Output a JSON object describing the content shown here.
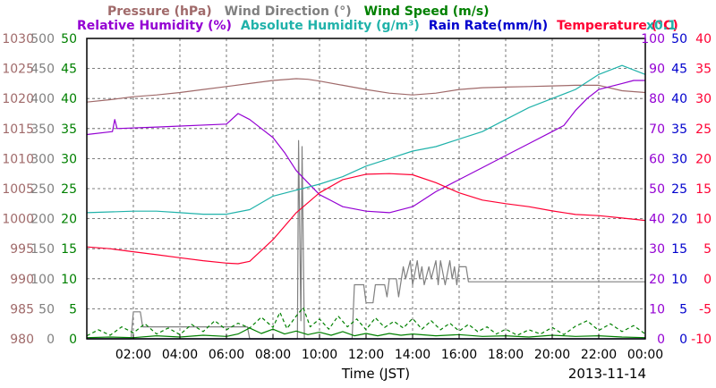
{
  "chart_data": {
    "type": "line",
    "date_label": "2013-11-14",
    "xlabel": "Time (JST)",
    "x_ticks": [
      "02:00",
      "04:00",
      "06:00",
      "08:00",
      "10:00",
      "12:00",
      "14:00",
      "16:00",
      "18:00",
      "20:00",
      "22:00",
      "00:00"
    ],
    "x_range": [
      0,
      24
    ],
    "grid": true,
    "legend": {
      "row1": [
        {
          "key": "pressure",
          "text": "Pressure (hPa)",
          "color": "#a06a6a"
        },
        {
          "key": "wdir",
          "text": "Wind Direction (°)",
          "color": "#808080"
        },
        {
          "key": "wspd",
          "text": "Wind Speed (m/s)",
          "color": "#008000"
        }
      ],
      "row2": [
        {
          "key": "rh",
          "text": "Relative Humidity (%)",
          "color": "#9400d3"
        },
        {
          "key": "ah",
          "text": "Absolute Humidity (g/m³)",
          "color": "#20b2aa"
        },
        {
          "key": "rain",
          "text": "Rain Rate(mm/h)",
          "color": "#0000cd"
        },
        {
          "key": "temp",
          "text": "Temperature (°C)",
          "color": "#ff0033"
        }
      ],
      "scale_note": {
        "text": "x0.1",
        "color": "#20b2aa"
      }
    },
    "axes": {
      "pressure": {
        "color": "#a06a6a",
        "range": [
          980,
          1030
        ],
        "ticks": [
          "980",
          "985",
          "990",
          "995",
          "1000",
          "1005",
          "1010",
          "1015",
          "1020",
          "1025",
          "1030"
        ]
      },
      "wdir": {
        "color": "#808080",
        "range": [
          0,
          500
        ],
        "ticks": [
          "0",
          "50",
          "100",
          "150",
          "200",
          "250",
          "300",
          "350",
          "400",
          "450",
          "500"
        ]
      },
      "wspd": {
        "color": "#008000",
        "range": [
          0,
          50
        ],
        "ticks": [
          "0",
          "5",
          "10",
          "15",
          "20",
          "25",
          "30",
          "35",
          "40",
          "45",
          "50"
        ]
      },
      "rh": {
        "color": "#9400d3",
        "range": [
          0,
          100
        ],
        "ticks": [
          "0",
          "10",
          "20",
          "30",
          "40",
          "50",
          "60",
          "70",
          "80",
          "90",
          "100"
        ]
      },
      "rain": {
        "color": "#0000cd",
        "range": [
          0,
          50
        ],
        "ticks": [
          "0",
          "5",
          "10",
          "15",
          "20",
          "25",
          "30",
          "35",
          "40",
          "45",
          "50"
        ]
      },
      "temp": {
        "color": "#ff0033",
        "range": [
          -10,
          40
        ],
        "ticks": [
          "-10",
          "-5",
          "0",
          "5",
          "10",
          "15",
          "20",
          "25",
          "30",
          "35",
          "40"
        ]
      }
    },
    "series": [
      {
        "name": "Pressure",
        "color": "#a06a6a",
        "axis": "pressure",
        "points": [
          [
            0,
            1019.4
          ],
          [
            1,
            1019.8
          ],
          [
            2,
            1020.3
          ],
          [
            3,
            1020.6
          ],
          [
            4,
            1021.0
          ],
          [
            5,
            1021.5
          ],
          [
            6,
            1022.0
          ],
          [
            7,
            1022.5
          ],
          [
            8,
            1023.0
          ],
          [
            9,
            1023.3
          ],
          [
            9.5,
            1023.2
          ],
          [
            10,
            1022.9
          ],
          [
            11,
            1022.2
          ],
          [
            12,
            1021.5
          ],
          [
            13,
            1020.9
          ],
          [
            14,
            1020.6
          ],
          [
            15,
            1020.9
          ],
          [
            16,
            1021.5
          ],
          [
            17,
            1021.8
          ],
          [
            18,
            1021.9
          ],
          [
            19,
            1022.0
          ],
          [
            20,
            1022.1
          ],
          [
            21,
            1022.2
          ],
          [
            22,
            1022.2
          ],
          [
            23,
            1021.3
          ],
          [
            24,
            1021.0
          ]
        ]
      },
      {
        "name": "Wind Direction",
        "color": "#808080",
        "axis": "wdir",
        "points": [
          [
            0,
            0
          ],
          [
            1.9,
            0
          ],
          [
            2.0,
            45
          ],
          [
            2.3,
            45
          ],
          [
            2.4,
            20
          ],
          [
            6.9,
            20
          ],
          [
            7.0,
            0
          ],
          [
            9.05,
            0
          ],
          [
            9.1,
            330
          ],
          [
            9.2,
            30
          ],
          [
            9.25,
            320
          ],
          [
            9.35,
            0
          ],
          [
            11.4,
            0
          ],
          [
            11.5,
            90
          ],
          [
            11.9,
            90
          ],
          [
            12.0,
            60
          ],
          [
            12.3,
            60
          ],
          [
            12.4,
            90
          ],
          [
            12.8,
            90
          ],
          [
            12.9,
            70
          ],
          [
            13.0,
            100
          ],
          [
            13.3,
            100
          ],
          [
            13.4,
            70
          ],
          [
            13.6,
            120
          ],
          [
            13.7,
            100
          ],
          [
            13.9,
            130
          ],
          [
            14.0,
            90
          ],
          [
            14.2,
            130
          ],
          [
            14.3,
            100
          ],
          [
            14.4,
            120
          ],
          [
            14.5,
            90
          ],
          [
            14.7,
            120
          ],
          [
            14.8,
            100
          ],
          [
            15.0,
            130
          ],
          [
            15.1,
            90
          ],
          [
            15.2,
            130
          ],
          [
            15.4,
            90
          ],
          [
            15.5,
            110
          ],
          [
            15.6,
            130
          ],
          [
            15.7,
            100
          ],
          [
            15.8,
            120
          ],
          [
            15.9,
            90
          ],
          [
            16.0,
            120
          ],
          [
            16.3,
            120
          ],
          [
            16.4,
            95
          ],
          [
            24,
            95
          ]
        ]
      },
      {
        "name": "Relative Humidity",
        "color": "#9400d3",
        "axis": "rh",
        "points": [
          [
            0,
            68
          ],
          [
            1.1,
            69
          ],
          [
            1.2,
            73
          ],
          [
            1.3,
            70
          ],
          [
            3,
            70.5
          ],
          [
            6,
            71.5
          ],
          [
            6.5,
            75
          ],
          [
            7,
            73
          ],
          [
            7.5,
            70
          ],
          [
            8,
            67
          ],
          [
            8.5,
            62
          ],
          [
            9,
            56
          ],
          [
            9.5,
            52
          ],
          [
            10,
            48
          ],
          [
            10.5,
            46
          ],
          [
            11,
            44
          ],
          [
            12,
            42.5
          ],
          [
            13,
            42
          ],
          [
            14,
            44
          ],
          [
            15,
            49
          ],
          [
            16,
            53
          ],
          [
            17,
            57
          ],
          [
            18,
            61
          ],
          [
            19,
            65
          ],
          [
            20,
            69
          ],
          [
            20.5,
            71
          ],
          [
            21,
            76
          ],
          [
            21.5,
            80
          ],
          [
            22,
            83
          ],
          [
            23,
            85
          ],
          [
            23.5,
            86
          ],
          [
            24,
            86
          ]
        ]
      },
      {
        "name": "Absolute Humidity",
        "color": "#20b2aa",
        "axis": "ah",
        "points": [
          [
            0,
            0.84
          ],
          [
            2,
            0.85
          ],
          [
            3,
            0.85
          ],
          [
            4,
            0.84
          ],
          [
            5,
            0.83
          ],
          [
            6,
            0.83
          ],
          [
            7,
            0.86
          ],
          [
            8,
            0.95
          ],
          [
            9,
            0.99
          ],
          [
            10,
            1.03
          ],
          [
            11,
            1.08
          ],
          [
            12,
            1.15
          ],
          [
            13,
            1.2
          ],
          [
            14,
            1.25
          ],
          [
            15,
            1.28
          ],
          [
            16,
            1.33
          ],
          [
            17,
            1.38
          ],
          [
            18,
            1.46
          ],
          [
            19,
            1.54
          ],
          [
            20,
            1.6
          ],
          [
            21,
            1.66
          ],
          [
            22,
            1.76
          ],
          [
            23,
            1.82
          ],
          [
            24,
            1.76
          ]
        ]
      },
      {
        "name": "Rain Rate",
        "color": "#0000cd",
        "axis": "rain",
        "points": [
          [
            0,
            0
          ],
          [
            24,
            0
          ]
        ]
      },
      {
        "name": "Temperature",
        "color": "#ff0033",
        "axis": "temp",
        "points": [
          [
            0,
            5.3
          ],
          [
            1,
            5.0
          ],
          [
            2,
            4.5
          ],
          [
            3,
            4.0
          ],
          [
            4,
            3.5
          ],
          [
            5,
            3.0
          ],
          [
            6,
            2.6
          ],
          [
            6.5,
            2.5
          ],
          [
            7,
            2.9
          ],
          [
            8,
            6.5
          ],
          [
            9,
            11.0
          ],
          [
            10,
            14.3
          ],
          [
            11,
            16.5
          ],
          [
            12,
            17.4
          ],
          [
            13,
            17.5
          ],
          [
            14,
            17.3
          ],
          [
            15,
            16.0
          ],
          [
            16,
            14.3
          ],
          [
            17,
            13.1
          ],
          [
            18,
            12.5
          ],
          [
            19,
            12.0
          ],
          [
            20,
            11.3
          ],
          [
            21,
            10.7
          ],
          [
            22,
            10.5
          ],
          [
            23,
            10.1
          ],
          [
            24,
            9.7
          ]
        ]
      },
      {
        "name": "Wind Speed",
        "color": "#008000",
        "axis": "wspd",
        "dashed": true,
        "points": [
          [
            0,
            0.5
          ],
          [
            0.5,
            1.5
          ],
          [
            1,
            0.6
          ],
          [
            1.5,
            2
          ],
          [
            2,
            1
          ],
          [
            2.5,
            2.5
          ],
          [
            3,
            0.8
          ],
          [
            3.5,
            1.8
          ],
          [
            4,
            0.7
          ],
          [
            4.5,
            2.4
          ],
          [
            5,
            1.2
          ],
          [
            5.5,
            3
          ],
          [
            6,
            1.5
          ],
          [
            6.5,
            2.6
          ],
          [
            7,
            1.8
          ],
          [
            7.5,
            3.6
          ],
          [
            8,
            1.9
          ],
          [
            8.3,
            4.4
          ],
          [
            8.6,
            1.7
          ],
          [
            9,
            3.8
          ],
          [
            9.3,
            5.2
          ],
          [
            9.6,
            2
          ],
          [
            10,
            3.3
          ],
          [
            10.4,
            1.6
          ],
          [
            10.8,
            3.8
          ],
          [
            11.2,
            2
          ],
          [
            11.6,
            3.3
          ],
          [
            12,
            1.5
          ],
          [
            12.4,
            3.5
          ],
          [
            12.8,
            1.9
          ],
          [
            13.2,
            2.9
          ],
          [
            13.6,
            1.8
          ],
          [
            14,
            3.4
          ],
          [
            14.4,
            1.6
          ],
          [
            14.8,
            3
          ],
          [
            15.2,
            1.5
          ],
          [
            15.6,
            2.6
          ],
          [
            16,
            1.3
          ],
          [
            16.4,
            2.4
          ],
          [
            16.8,
            1.2
          ],
          [
            17.2,
            2
          ],
          [
            17.6,
            0.8
          ],
          [
            18,
            1.6
          ],
          [
            18.5,
            0.6
          ],
          [
            19,
            1.5
          ],
          [
            19.5,
            0.8
          ],
          [
            20,
            1.9
          ],
          [
            20.5,
            0.7
          ],
          [
            21,
            2.1
          ],
          [
            21.5,
            3
          ],
          [
            22,
            1.4
          ],
          [
            22.5,
            2.5
          ],
          [
            23,
            1.2
          ],
          [
            23.5,
            2.2
          ],
          [
            24,
            0.8
          ]
        ]
      },
      {
        "name": "Wind Speed",
        "color": "#008000",
        "axis": "wspd",
        "points": [
          [
            0,
            0.2
          ],
          [
            1,
            0.3
          ],
          [
            2,
            0.2
          ],
          [
            3,
            0.5
          ],
          [
            4,
            0.3
          ],
          [
            5,
            0.6
          ],
          [
            6,
            0.4
          ],
          [
            6.5,
            0.8
          ],
          [
            7,
            1.8
          ],
          [
            7.5,
            0.9
          ],
          [
            8,
            1.6
          ],
          [
            8.5,
            0.8
          ],
          [
            9,
            1.3
          ],
          [
            9.5,
            0.7
          ],
          [
            10,
            1.1
          ],
          [
            10.5,
            0.6
          ],
          [
            11,
            1.2
          ],
          [
            11.5,
            0.5
          ],
          [
            12,
            0.9
          ],
          [
            12.5,
            0.5
          ],
          [
            13,
            0.9
          ],
          [
            13.5,
            0.6
          ],
          [
            14,
            0.8
          ],
          [
            15,
            0.5
          ],
          [
            16,
            0.7
          ],
          [
            17,
            0.4
          ],
          [
            18,
            0.5
          ],
          [
            19,
            0.3
          ],
          [
            20,
            0.6
          ],
          [
            21,
            0.4
          ],
          [
            22,
            0.5
          ],
          [
            23,
            0.3
          ],
          [
            24,
            0.2
          ]
        ]
      }
    ]
  }
}
